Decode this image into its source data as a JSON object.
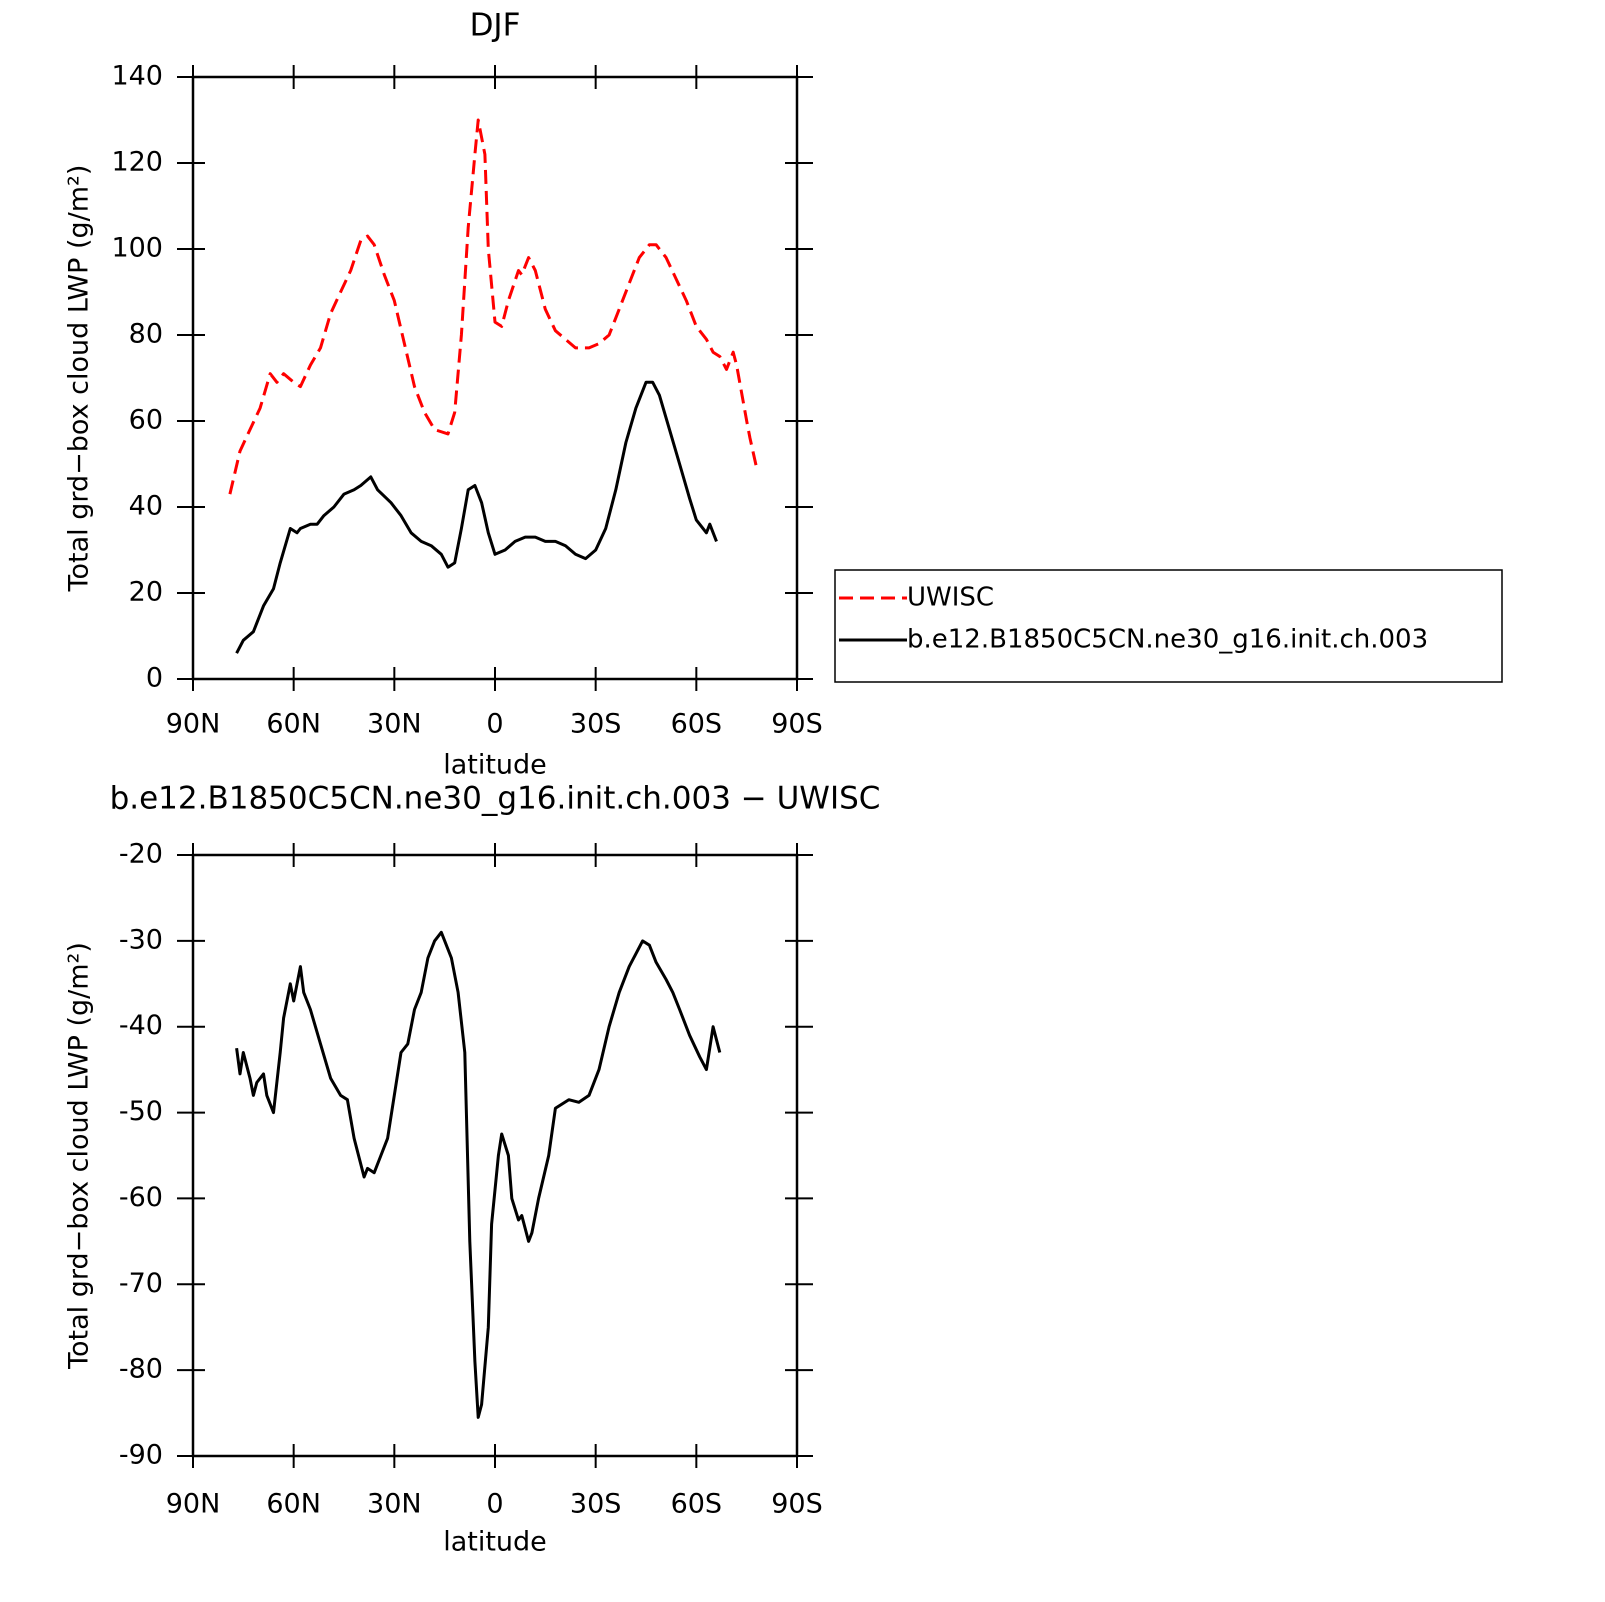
{
  "chart_data": [
    {
      "type": "line",
      "title": "DJF",
      "ylabel": "Total grd−box cloud LWP (g/m²)",
      "xlabel": "latitude",
      "xlim": [
        90,
        -90
      ],
      "ylim": [
        0,
        140
      ],
      "xticks": [
        {
          "value": 90,
          "label": "90N"
        },
        {
          "value": 60,
          "label": "60N"
        },
        {
          "value": 30,
          "label": "30N"
        },
        0,
        {
          "value": -30,
          "label": "30S"
        },
        {
          "value": -60,
          "label": "60S"
        },
        {
          "value": -90,
          "label": "90S"
        }
      ],
      "yticks": [
        0,
        20,
        40,
        60,
        80,
        100,
        120,
        140
      ],
      "legend": "outside-right",
      "series": [
        {
          "name": "UWISC",
          "color": "#ff0000",
          "dash": "dashed",
          "x": [
            79,
            76,
            73,
            70,
            67,
            65,
            63,
            60,
            58,
            55,
            52,
            49,
            46,
            43,
            40,
            38,
            36,
            33,
            30,
            27,
            24,
            21,
            18,
            14,
            12,
            10,
            8,
            6,
            5,
            3,
            2,
            0,
            -2,
            -4,
            -7,
            -8,
            -10,
            -12,
            -15,
            -18,
            -21,
            -24,
            -28,
            -31,
            -34,
            -37,
            -40,
            -43,
            -46,
            -48,
            -51,
            -54,
            -57,
            -60,
            -63,
            -65,
            -67,
            -69,
            -71,
            -72,
            -75,
            -76,
            -78
          ],
          "values": [
            43,
            53,
            58,
            63,
            71,
            69,
            71,
            69,
            68,
            73,
            77,
            85,
            90,
            95,
            102,
            103,
            101,
            94,
            88,
            78,
            68,
            62,
            58,
            57,
            62,
            80,
            105,
            122,
            130,
            122,
            100,
            83,
            82,
            88,
            95,
            94,
            98,
            95,
            86,
            81,
            79,
            77,
            77,
            78,
            80,
            86,
            92,
            98,
            101,
            101,
            98,
            93,
            88,
            82,
            79,
            76,
            75,
            72,
            76,
            73,
            60,
            56,
            49
          ]
        },
        {
          "name": "b.e12.B1850C5CN.ne30_g16.init.ch.003",
          "color": "#000000",
          "dash": "solid",
          "x": [
            77,
            75,
            72,
            69,
            66,
            64,
            61,
            59,
            58,
            55,
            53,
            51,
            48,
            45,
            42,
            40,
            37,
            35,
            31,
            28,
            25,
            22,
            19,
            16,
            14,
            12,
            10,
            8,
            6,
            4,
            2,
            0,
            -3,
            -6,
            -9,
            -12,
            -15,
            -18,
            -21,
            -24,
            -27,
            -30,
            -33,
            -36,
            -39,
            -42,
            -45,
            -47,
            -49,
            -52,
            -55,
            -58,
            -60,
            -63,
            -64,
            -66
          ],
          "values": [
            6,
            9,
            11,
            17,
            21,
            27,
            35,
            34,
            35,
            36,
            36,
            38,
            40,
            43,
            44,
            45,
            47,
            44,
            41,
            38,
            34,
            32,
            31,
            29,
            26,
            27,
            35,
            44,
            45,
            41,
            34,
            29,
            30,
            32,
            33,
            33,
            32,
            32,
            31,
            29,
            28,
            30,
            35,
            44,
            55,
            63,
            69,
            69,
            66,
            58,
            50,
            42,
            37,
            34,
            36,
            32
          ]
        }
      ]
    },
    {
      "type": "line",
      "title": "b.e12.B1850C5CN.ne30_g16.init.ch.003 − UWISC",
      "ylabel": "Total grd−box cloud LWP (g/m²)",
      "xlabel": "latitude",
      "xlim": [
        90,
        -90
      ],
      "ylim": [
        -90,
        -20
      ],
      "xticks": [
        {
          "value": 90,
          "label": "90N"
        },
        {
          "value": 60,
          "label": "60N"
        },
        {
          "value": 30,
          "label": "30N"
        },
        0,
        {
          "value": -30,
          "label": "30S"
        },
        {
          "value": -60,
          "label": "60S"
        },
        {
          "value": -90,
          "label": "90S"
        }
      ],
      "yticks": [
        -90,
        -80,
        -70,
        -60,
        -50,
        -40,
        -30,
        -20
      ],
      "color": "#000000",
      "x": [
        77,
        76,
        75,
        73,
        72,
        71,
        69,
        68,
        66,
        64,
        63,
        61,
        60,
        58,
        57,
        55,
        52,
        49,
        46,
        44,
        42,
        39,
        38,
        36,
        34,
        32,
        30,
        28,
        26,
        24,
        22,
        20,
        18,
        16,
        15,
        13,
        11,
        9,
        7.5,
        6,
        5,
        4,
        2,
        1,
        -1,
        -2,
        -4,
        -5,
        -7,
        -8,
        -10,
        -11,
        -13,
        -16,
        -18,
        -20,
        -22,
        -25,
        -28,
        -31,
        -34,
        -37,
        -40,
        -44,
        -46,
        -48,
        -51,
        -53,
        -55,
        -58,
        -61,
        -63,
        -65,
        -67
      ],
      "values": [
        -42.5,
        -45.5,
        -43,
        -46,
        -48,
        -46.5,
        -45.5,
        -48,
        -50,
        -43,
        -39,
        -35,
        -37,
        -33,
        -36,
        -38,
        -42,
        -46,
        -48,
        -48.5,
        -53,
        -57.5,
        -56.5,
        -57,
        -55,
        -53,
        -48,
        -43,
        -42,
        -38,
        -36,
        -32,
        -30,
        -29,
        -30,
        -32,
        -36,
        -43,
        -65,
        -79,
        -85.5,
        -84,
        -75,
        -63,
        -55,
        -52.5,
        -55,
        -60,
        -62.5,
        -62,
        -65,
        -64,
        -60,
        -55,
        -49.5,
        -49,
        -48.5,
        -48.8,
        -48,
        -45,
        -40,
        -36,
        -33,
        -30,
        -30.5,
        -32.5,
        -34.5,
        -36,
        -38,
        -41,
        -43.5,
        -45,
        -40,
        -43
      ]
    }
  ]
}
